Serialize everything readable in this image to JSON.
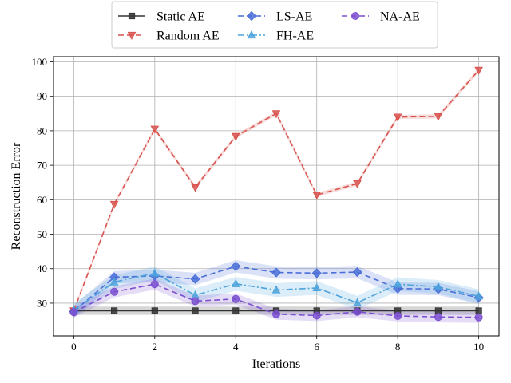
{
  "chart_data": {
    "type": "line",
    "title": "",
    "xlabel": "Iterations",
    "ylabel": "Reconstruction Error",
    "xlim": [
      -0.5,
      10.5
    ],
    "ylim": [
      20.5,
      101.5
    ],
    "xticks": [
      0,
      2,
      4,
      6,
      8,
      10
    ],
    "yticks": [
      30,
      40,
      50,
      60,
      70,
      80,
      90,
      100
    ],
    "grid": true,
    "legend_position": "top-center",
    "x": [
      0,
      1,
      2,
      3,
      4,
      5,
      6,
      7,
      8,
      9,
      10
    ],
    "series": [
      {
        "name": "Static AE",
        "color": "#333333",
        "dash": "solid",
        "marker": "square",
        "values": [
          27.8,
          27.8,
          27.8,
          27.8,
          27.8,
          27.8,
          27.8,
          27.8,
          27.8,
          27.8,
          27.8
        ],
        "band": 1.2
      },
      {
        "name": "Random AE",
        "color": "#d9534f",
        "dash": "dashed",
        "marker": "triangle-down",
        "values": [
          27.8,
          58.7,
          80.5,
          63.6,
          78.4,
          85.0,
          61.4,
          64.7,
          84.0,
          84.2,
          97.6
        ],
        "band": 0.6
      },
      {
        "name": "LS-AE",
        "color": "#4a6fd8",
        "dash": "dashed",
        "marker": "diamond",
        "values": [
          27.6,
          37.5,
          37.9,
          37.0,
          40.7,
          38.9,
          38.7,
          39.0,
          34.2,
          34.1,
          31.6
        ],
        "band": 1.8
      },
      {
        "name": "FH-AE",
        "color": "#4da3dc",
        "dash": "dashdot",
        "marker": "triangle-up",
        "values": [
          28.0,
          36.1,
          38.7,
          32.3,
          35.6,
          33.8,
          34.4,
          30.1,
          35.5,
          34.7,
          32.0
        ],
        "band": 2.0
      },
      {
        "name": "NA-AE",
        "color": "#7b4fd0",
        "dash": "dashed",
        "marker": "circle",
        "values": [
          27.4,
          33.3,
          35.5,
          30.6,
          31.2,
          26.8,
          26.4,
          27.5,
          26.3,
          26.0,
          25.9
        ],
        "band": 1.6
      }
    ]
  }
}
